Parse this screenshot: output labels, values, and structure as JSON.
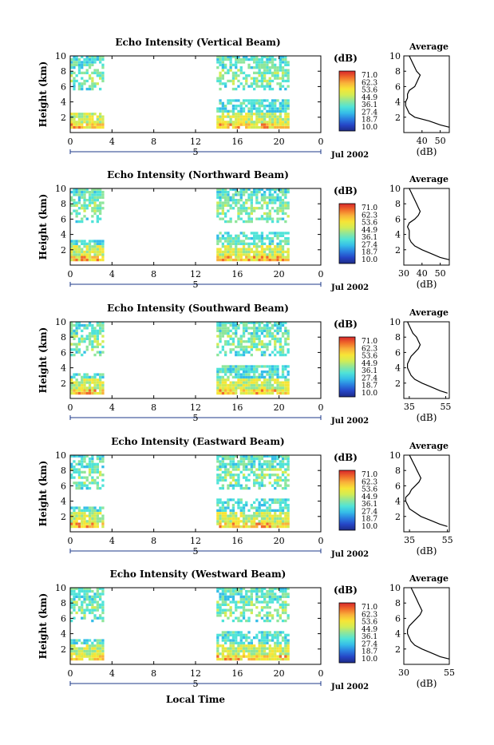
{
  "colors": {
    "colorbar": [
      "#1d2a87",
      "#2546c7",
      "#2a7fe0",
      "#35bde8",
      "#4fe3d8",
      "#8ee69b",
      "#d3ec54",
      "#f7e536",
      "#f9b23a",
      "#f06a2a",
      "#d8272b"
    ]
  },
  "colorbar_label": "(dB)",
  "colorbar_ticks": [
    "71.0",
    "62.3",
    "53.6",
    "44.9",
    "36.1",
    "27.4",
    "18.7",
    "10.0"
  ],
  "average_title": "Average",
  "average_xlabel": "(dB)",
  "time_axis_label": "Local Time",
  "day_label": "5",
  "month_label": "Jul 2002",
  "chart_data": [
    {
      "type": "heatmap",
      "title": "Echo Intensity (Vertical Beam)",
      "ylabel": "Height (km)",
      "xlim": [
        0,
        24
      ],
      "ylim": [
        0,
        10
      ],
      "x_ticks": [
        "0",
        "4",
        "8",
        "12",
        "16",
        "20",
        "0"
      ],
      "y_ticks": [
        "2",
        "4",
        "6",
        "8",
        "10"
      ],
      "data_segments": [
        {
          "x_start": 0,
          "x_end": 3.2,
          "height_ranges_km": [
            [
              0.5,
              2.5
            ],
            [
              5.5,
              10
            ]
          ]
        },
        {
          "x_start": 14,
          "x_end": 20.8,
          "height_ranges_km": [
            [
              0.5,
              4.2
            ],
            [
              5.5,
              10
            ]
          ]
        }
      ],
      "average_profile": {
        "xlim": [
          30,
          55
        ],
        "x_ticks": [
          "40",
          "50"
        ],
        "height_km": [
          0.7,
          1.0,
          1.5,
          2.0,
          2.5,
          3.0,
          3.5,
          4.0,
          4.5,
          5.0,
          5.5,
          6.0,
          6.5,
          7.0,
          7.5,
          8.0,
          8.5,
          9.0,
          9.5,
          10.0
        ],
        "db": [
          55,
          50,
          44,
          36,
          33,
          32,
          31,
          31,
          32,
          32,
          33,
          36,
          37,
          38,
          39,
          37,
          36,
          35,
          34,
          33
        ]
      }
    },
    {
      "type": "heatmap",
      "title": "Echo Intensity (Northward Beam)",
      "ylabel": "Height (km)",
      "xlim": [
        0,
        24
      ],
      "ylim": [
        0,
        10
      ],
      "x_ticks": [
        "0",
        "4",
        "8",
        "12",
        "16",
        "20",
        "0"
      ],
      "y_ticks": [
        "2",
        "4",
        "6",
        "8",
        "10"
      ],
      "data_segments": [
        {
          "x_start": 0,
          "x_end": 3.2,
          "height_ranges_km": [
            [
              0.5,
              3.0
            ],
            [
              5.5,
              10
            ]
          ]
        },
        {
          "x_start": 14,
          "x_end": 20.8,
          "height_ranges_km": [
            [
              0.5,
              4.2
            ],
            [
              5.5,
              10
            ]
          ]
        }
      ],
      "average_profile": {
        "xlim": [
          30,
          55
        ],
        "x_ticks": [
          "30",
          "40",
          "50"
        ],
        "height_km": [
          0.7,
          1.0,
          1.5,
          2.0,
          2.5,
          3.0,
          3.5,
          4.0,
          4.5,
          5.0,
          5.5,
          6.0,
          6.5,
          7.0,
          7.5,
          8.0,
          8.5,
          9.0,
          9.5,
          10.0
        ],
        "db": [
          55,
          50,
          45,
          40,
          36,
          34,
          33,
          33,
          33,
          32,
          33,
          36,
          38,
          39,
          38,
          37,
          36,
          35,
          34,
          33
        ]
      }
    },
    {
      "type": "heatmap",
      "title": "Echo Intensity (Southward Beam)",
      "ylabel": "Height (km)",
      "xlim": [
        0,
        24
      ],
      "ylim": [
        0,
        10
      ],
      "x_ticks": [
        "0",
        "4",
        "8",
        "12",
        "16",
        "20",
        "0"
      ],
      "y_ticks": [
        "2",
        "4",
        "6",
        "8",
        "10"
      ],
      "data_segments": [
        {
          "x_start": 0,
          "x_end": 3.2,
          "height_ranges_km": [
            [
              0.5,
              3.0
            ],
            [
              5.5,
              10
            ]
          ]
        },
        {
          "x_start": 14,
          "x_end": 20.8,
          "height_ranges_km": [
            [
              0.5,
              4.2
            ],
            [
              5.5,
              10
            ]
          ]
        }
      ],
      "average_profile": {
        "xlim": [
          32,
          57
        ],
        "x_ticks": [
          "35",
          "55"
        ],
        "height_km": [
          0.7,
          1.0,
          1.5,
          2.0,
          2.5,
          3.0,
          3.5,
          4.0,
          4.5,
          5.0,
          5.5,
          6.0,
          6.5,
          7.0,
          7.5,
          8.0,
          8.5,
          9.0,
          9.5,
          10.0
        ],
        "db": [
          56,
          52,
          47,
          42,
          38,
          36,
          35,
          34,
          34,
          35,
          36,
          38,
          40,
          41,
          40,
          39,
          37,
          36,
          35,
          34
        ]
      }
    },
    {
      "type": "heatmap",
      "title": "Echo Intensity (Eastward Beam)",
      "ylabel": "Height (km)",
      "xlim": [
        0,
        24
      ],
      "ylim": [
        0,
        10
      ],
      "x_ticks": [
        "0",
        "4",
        "8",
        "12",
        "16",
        "20",
        "0"
      ],
      "y_ticks": [
        "2",
        "4",
        "6",
        "8",
        "10"
      ],
      "data_segments": [
        {
          "x_start": 0,
          "x_end": 3.2,
          "height_ranges_km": [
            [
              0.5,
              3.0
            ],
            [
              5.5,
              10
            ]
          ]
        },
        {
          "x_start": 14,
          "x_end": 20.8,
          "height_ranges_km": [
            [
              0.5,
              4.2
            ],
            [
              5.5,
              10
            ]
          ]
        }
      ],
      "average_profile": {
        "xlim": [
          32,
          56
        ],
        "x_ticks": [
          "35",
          "55"
        ],
        "height_km": [
          0.7,
          1.0,
          1.5,
          2.0,
          2.5,
          3.0,
          3.5,
          4.0,
          4.5,
          5.0,
          5.5,
          6.0,
          6.5,
          7.0,
          7.5,
          8.0,
          8.5,
          9.0,
          9.5,
          10.0
        ],
        "db": [
          55,
          51,
          46,
          41,
          38,
          35,
          34,
          33,
          33,
          35,
          36,
          38,
          40,
          41,
          40,
          39,
          38,
          37,
          36,
          35
        ]
      }
    },
    {
      "type": "heatmap",
      "title": "Echo Intensity (Westward Beam)",
      "ylabel": "Height (km)",
      "xlim": [
        0,
        24
      ],
      "ylim": [
        0,
        10
      ],
      "x_ticks": [
        "0",
        "4",
        "8",
        "12",
        "16",
        "20",
        "0"
      ],
      "y_ticks": [
        "2",
        "4",
        "6",
        "8",
        "10"
      ],
      "data_segments": [
        {
          "x_start": 0,
          "x_end": 3.2,
          "height_ranges_km": [
            [
              0.5,
              3.0
            ],
            [
              5.5,
              10
            ]
          ]
        },
        {
          "x_start": 14,
          "x_end": 20.8,
          "height_ranges_km": [
            [
              0.5,
              4.2
            ],
            [
              5.5,
              10
            ]
          ]
        }
      ],
      "average_profile": {
        "xlim": [
          30,
          55
        ],
        "x_ticks": [
          "30",
          "55"
        ],
        "height_km": [
          0.7,
          1.0,
          1.5,
          2.0,
          2.5,
          3.0,
          3.5,
          4.0,
          4.5,
          5.0,
          5.5,
          6.0,
          6.5,
          7.0,
          7.5,
          8.0,
          8.5,
          9.0,
          9.5,
          10.0
        ],
        "db": [
          55,
          50,
          45,
          40,
          36,
          34,
          33,
          32,
          32,
          33,
          35,
          37,
          39,
          40,
          39,
          38,
          37,
          36,
          35,
          34
        ]
      }
    }
  ]
}
